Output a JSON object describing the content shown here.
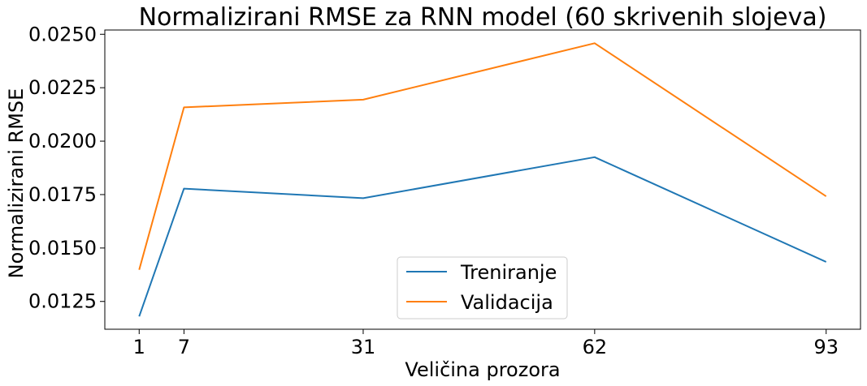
{
  "chart_data": {
    "type": "line",
    "title": "Normalizirani RMSE za RNN model (60 skrivenih slojeva)",
    "xlabel": "Veličina prozora",
    "ylabel": "Normalizirani RMSE",
    "x": [
      1,
      7,
      31,
      62,
      93
    ],
    "xticks": [
      "1",
      "7",
      "31",
      "62",
      "93"
    ],
    "yticks": [
      "0.0125",
      "0.0150",
      "0.0175",
      "0.0200",
      "0.0225",
      "0.0250"
    ],
    "xlim": [
      -3.6,
      97.6
    ],
    "ylim": [
      0.0112,
      0.0252
    ],
    "grid": false,
    "legend_position": "lower-center",
    "series": [
      {
        "name": "Treniranje",
        "color": "#1f77b4",
        "values": [
          0.0118,
          0.01778,
          0.01733,
          0.01925,
          0.01435
        ]
      },
      {
        "name": "Validacija",
        "color": "#ff7f0e",
        "values": [
          0.01398,
          0.02158,
          0.02194,
          0.02458,
          0.01742
        ]
      }
    ]
  }
}
